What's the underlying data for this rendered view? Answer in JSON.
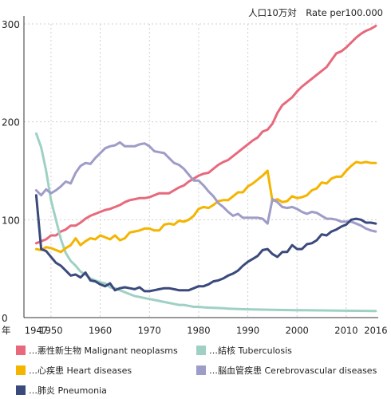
{
  "unit_label": "人口10万対　Rate per100.000",
  "chart_data": {
    "type": "line",
    "xlabel": "年",
    "xlim": [
      1944.5,
      2016.5
    ],
    "ylim": [
      0,
      300
    ],
    "y_ticks": [
      0,
      100,
      200,
      300
    ],
    "x_tick_labels": [
      {
        "year": 1947,
        "text": "1947"
      },
      {
        "year": 1950,
        "text": "1950"
      },
      {
        "year": 1960,
        "text": "1960"
      },
      {
        "year": 1970,
        "text": "1970"
      },
      {
        "year": 1980,
        "text": "1980"
      },
      {
        "year": 1990,
        "text": "1990"
      },
      {
        "year": 2000,
        "text": "2000"
      },
      {
        "year": 2010,
        "text": "2010"
      },
      {
        "year": 2016,
        "text": "2016"
      }
    ],
    "grid": true,
    "legend_position": "bottom",
    "series": [
      {
        "name": "悪性新生物 Malignant neoplasms",
        "color": "#e8697c",
        "x": [
          1947,
          1948,
          1949,
          1950,
          1951,
          1952,
          1953,
          1954,
          1955,
          1956,
          1957,
          1958,
          1959,
          1960,
          1961,
          1962,
          1963,
          1964,
          1965,
          1966,
          1967,
          1968,
          1969,
          1970,
          1971,
          1972,
          1973,
          1974,
          1975,
          1976,
          1977,
          1978,
          1979,
          1980,
          1981,
          1982,
          1983,
          1984,
          1985,
          1986,
          1987,
          1988,
          1989,
          1990,
          1991,
          1992,
          1993,
          1994,
          1995,
          1996,
          1997,
          1998,
          1999,
          2000,
          2001,
          2002,
          2003,
          2004,
          2005,
          2006,
          2007,
          2008,
          2009,
          2010,
          2011,
          2012,
          2013,
          2014,
          2015,
          2016
        ],
        "y": [
          76,
          78,
          80,
          84,
          84,
          88,
          90,
          94,
          94,
          97,
          101,
          104,
          106,
          108,
          110,
          111,
          113,
          115,
          118,
          120,
          121,
          122,
          122,
          123,
          125,
          127,
          127,
          127,
          130,
          133,
          135,
          139,
          142,
          145,
          147,
          148,
          152,
          156,
          159,
          161,
          165,
          169,
          173,
          177,
          181,
          184,
          190,
          192,
          198,
          209,
          217,
          221,
          225,
          231,
          236,
          240,
          244,
          248,
          252,
          256,
          263,
          270,
          272,
          276,
          281,
          286,
          290,
          293,
          295,
          298
        ]
      },
      {
        "name": "結核 Tuberculosis",
        "color": "#9ed1c4",
        "x": [
          1947,
          1948,
          1949,
          1950,
          1951,
          1952,
          1953,
          1954,
          1955,
          1956,
          1957,
          1958,
          1959,
          1960,
          1961,
          1962,
          1963,
          1964,
          1965,
          1966,
          1967,
          1968,
          1969,
          1970,
          1971,
          1972,
          1973,
          1974,
          1975,
          1976,
          1977,
          1978,
          1979,
          1980,
          1981,
          1982,
          1983,
          1984,
          1985,
          1986,
          1987,
          1988,
          1990,
          1995,
          2000,
          2005,
          2010,
          2016
        ],
        "y": [
          188,
          174,
          150,
          120,
          100,
          80,
          66,
          58,
          53,
          47,
          44,
          40,
          38,
          36,
          35,
          31,
          30,
          28,
          26,
          24,
          22,
          21,
          20,
          19,
          18,
          17,
          16,
          15,
          14,
          13,
          13,
          12,
          11,
          11,
          10.5,
          10.2,
          10,
          9.8,
          9.5,
          9.2,
          9,
          8.8,
          8.5,
          8,
          7.6,
          7.3,
          7,
          6.8
        ]
      },
      {
        "name": "心疾患 Heart diseases",
        "color": "#f4b400",
        "x": [
          1947,
          1948,
          1949,
          1950,
          1951,
          1952,
          1953,
          1954,
          1955,
          1956,
          1957,
          1958,
          1959,
          1960,
          1961,
          1962,
          1963,
          1964,
          1965,
          1966,
          1967,
          1968,
          1969,
          1970,
          1971,
          1972,
          1973,
          1974,
          1975,
          1976,
          1977,
          1978,
          1979,
          1980,
          1981,
          1982,
          1983,
          1984,
          1985,
          1986,
          1987,
          1988,
          1989,
          1990,
          1991,
          1992,
          1993,
          1994,
          1995,
          1996,
          1997,
          1998,
          1999,
          2000,
          2001,
          2002,
          2003,
          2004,
          2005,
          2006,
          2007,
          2008,
          2009,
          2010,
          2011,
          2012,
          2013,
          2014,
          2015,
          2016
        ],
        "y": [
          70,
          69,
          72,
          71,
          69,
          67,
          71,
          74,
          81,
          74,
          78,
          81,
          80,
          84,
          82,
          80,
          84,
          79,
          81,
          87,
          88,
          89,
          91,
          91,
          89,
          89,
          95,
          96,
          95,
          99,
          98,
          100,
          104,
          111,
          113,
          112,
          115,
          119,
          120,
          120,
          124,
          128,
          128,
          134,
          137,
          141,
          145,
          150,
          119,
          121,
          118,
          119,
          124,
          122,
          123,
          125,
          130,
          132,
          138,
          137,
          142,
          144,
          144,
          150,
          155,
          159,
          158,
          159,
          158,
          158
        ]
      },
      {
        "name": "脳血管疾患 Cerebrovascular diseases",
        "color": "#9e9cc8",
        "x": [
          1947,
          1948,
          1949,
          1950,
          1951,
          1952,
          1953,
          1954,
          1955,
          1956,
          1957,
          1958,
          1959,
          1960,
          1961,
          1962,
          1963,
          1964,
          1965,
          1966,
          1967,
          1968,
          1969,
          1970,
          1971,
          1972,
          1973,
          1974,
          1975,
          1976,
          1977,
          1978,
          1979,
          1980,
          1981,
          1982,
          1983,
          1984,
          1985,
          1986,
          1987,
          1988,
          1989,
          1990,
          1991,
          1992,
          1993,
          1994,
          1995,
          1996,
          1997,
          1998,
          1999,
          2000,
          2001,
          2002,
          2003,
          2004,
          2005,
          2006,
          2007,
          2008,
          2009,
          2010,
          2011,
          2012,
          2013,
          2014,
          2015,
          2016
        ],
        "y": [
          130,
          125,
          131,
          127,
          130,
          134,
          139,
          137,
          148,
          155,
          158,
          157,
          163,
          168,
          173,
          175,
          176,
          179,
          175,
          175,
          175,
          177,
          178,
          175,
          170,
          169,
          168,
          163,
          158,
          156,
          152,
          146,
          140,
          140,
          135,
          129,
          124,
          117,
          113,
          108,
          104,
          106,
          102,
          102,
          102,
          102,
          101,
          96,
          121,
          118,
          113,
          112,
          113,
          111,
          108,
          106,
          108,
          107,
          104,
          101,
          101,
          100,
          98,
          98,
          98,
          96,
          94,
          91,
          89,
          88
        ]
      },
      {
        "name": "肺炎 Pneumonia",
        "color": "#3b4a7c",
        "x": [
          1947,
          1948,
          1949,
          1950,
          1951,
          1952,
          1953,
          1954,
          1955,
          1956,
          1957,
          1958,
          1959,
          1960,
          1961,
          1962,
          1963,
          1964,
          1965,
          1966,
          1967,
          1968,
          1969,
          1970,
          1971,
          1972,
          1973,
          1974,
          1975,
          1976,
          1977,
          1978,
          1979,
          1980,
          1981,
          1982,
          1983,
          1984,
          1985,
          1986,
          1987,
          1988,
          1989,
          1990,
          1991,
          1992,
          1993,
          1994,
          1995,
          1996,
          1997,
          1998,
          1999,
          2000,
          2001,
          2002,
          2003,
          2004,
          2005,
          2006,
          2007,
          2008,
          2009,
          2010,
          2011,
          2012,
          2013,
          2014,
          2015,
          2016
        ],
        "y": [
          125,
          70,
          68,
          62,
          56,
          53,
          48,
          43,
          44,
          41,
          46,
          38,
          37,
          34,
          32,
          35,
          28,
          30,
          31,
          30,
          29,
          31,
          27,
          27,
          28,
          29,
          30,
          30,
          29,
          28,
          28,
          28,
          30,
          32,
          32,
          34,
          37,
          38,
          40,
          43,
          45,
          48,
          53,
          57,
          60,
          63,
          69,
          70,
          65,
          62,
          67,
          67,
          74,
          70,
          70,
          75,
          76,
          79,
          85,
          84,
          88,
          90,
          93,
          95,
          100,
          101,
          100,
          97,
          97,
          96
        ]
      }
    ]
  }
}
